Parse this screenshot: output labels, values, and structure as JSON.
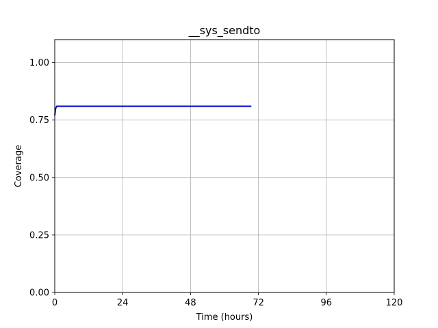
{
  "chart_data": {
    "type": "line",
    "title": "__sys_sendto",
    "xlabel": "Time (hours)",
    "ylabel": "Coverage",
    "xlim": [
      0,
      120
    ],
    "ylim": [
      0,
      1.1
    ],
    "xticks": [
      0,
      24,
      48,
      72,
      96,
      120
    ],
    "yticks": [
      0.0,
      0.25,
      0.5,
      0.75,
      1.0
    ],
    "xtick_labels": [
      "0",
      "24",
      "48",
      "72",
      "96",
      "120"
    ],
    "ytick_labels": [
      "0.00",
      "0.25",
      "0.50",
      "0.75",
      "1.00"
    ],
    "grid": true,
    "series": [
      {
        "color": "#0000cc",
        "x": [
          0,
          0.3,
          0.7,
          69.5
        ],
        "y": [
          0.77,
          0.8,
          0.81,
          0.81
        ]
      }
    ]
  }
}
